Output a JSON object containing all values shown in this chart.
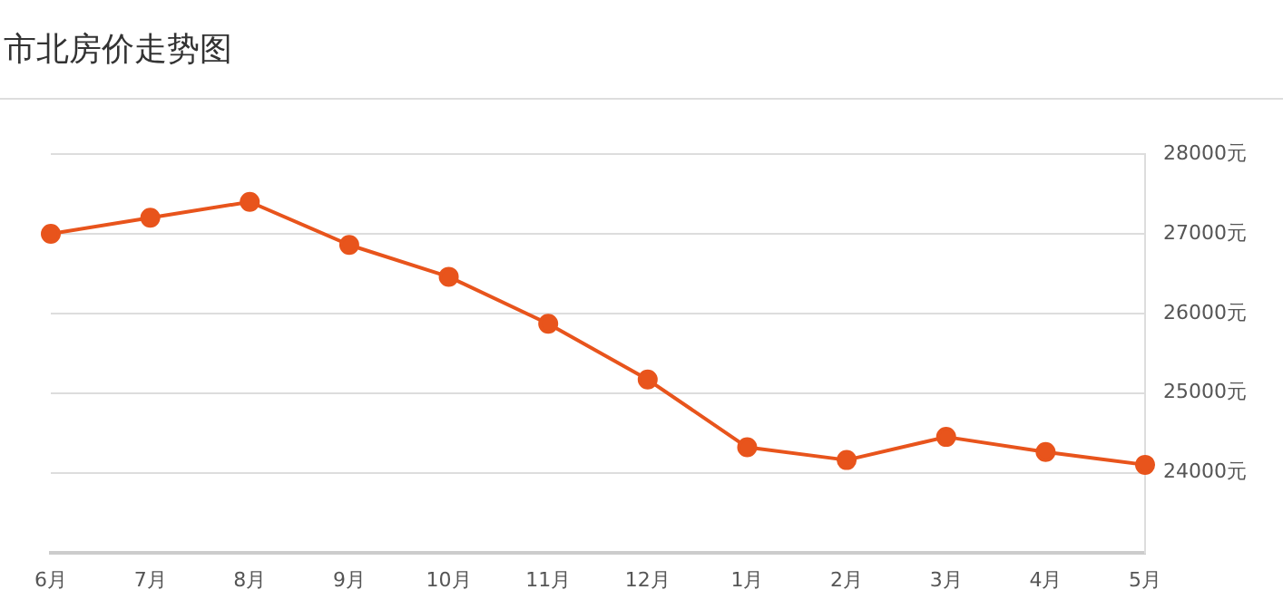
{
  "chart_data": {
    "type": "line",
    "title": "市北房价走势图",
    "categories": [
      "6月",
      "7月",
      "8月",
      "9月",
      "10月",
      "11月",
      "12月",
      "1月",
      "2月",
      "3月",
      "4月",
      "5月"
    ],
    "series": [
      {
        "color": "#e8541c",
        "values": [
          27000,
          27200,
          27400,
          26860,
          26460,
          25870,
          25170,
          24320,
          24160,
          24450,
          24260,
          24100
        ]
      }
    ],
    "ylim": [
      23000,
      28000
    ],
    "yticks": [
      {
        "value": 24000,
        "label": "24000元"
      },
      {
        "value": 25000,
        "label": "25000元"
      },
      {
        "value": 26000,
        "label": "26000元"
      },
      {
        "value": 27000,
        "label": "27000元"
      },
      {
        "value": 28000,
        "label": "28000元"
      }
    ],
    "grid": "y",
    "legend": false,
    "marker": "circle",
    "line_style": "solid"
  }
}
